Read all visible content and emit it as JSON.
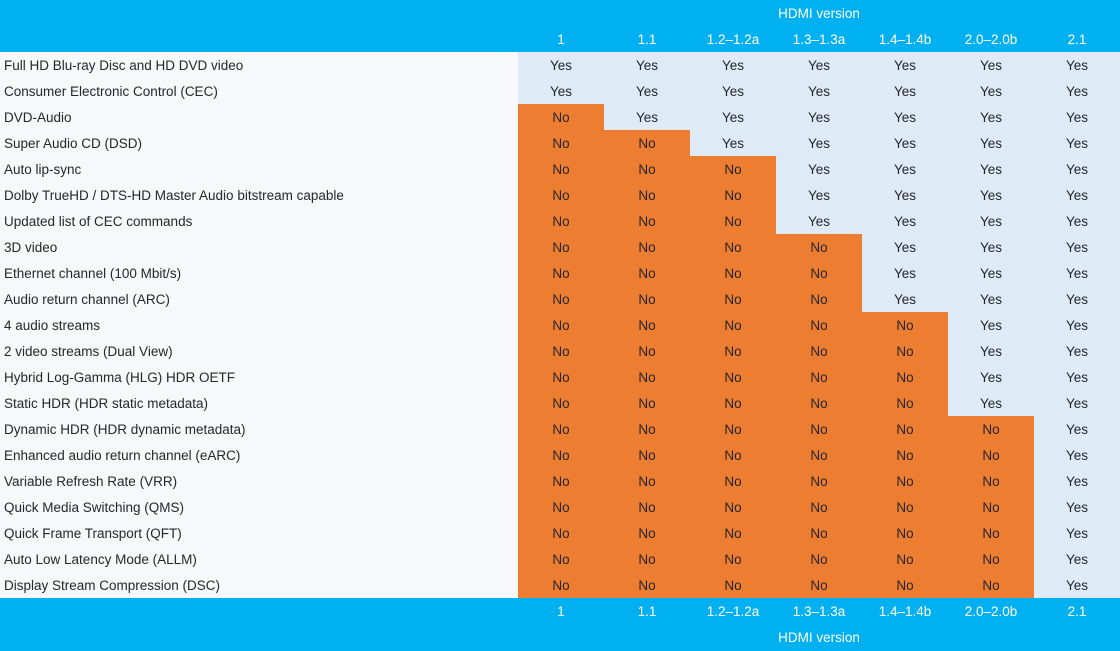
{
  "colors": {
    "header_bg": "#00B0F0",
    "header_text": "#FFFFFF",
    "yes_bg": "#DEEBF7",
    "no_bg": "#ED7D31",
    "row_label_bg": "#F7F8FA",
    "text": "#26262B"
  },
  "chart_data": {
    "type": "table",
    "title": "HDMI version",
    "columns": [
      "1",
      "1.1",
      "1.2–1.2a",
      "1.3–1.3a",
      "1.4–1.4b",
      "2.0–2.0b",
      "2.1"
    ],
    "layout": {
      "header_repeated_in_footer": true,
      "yes_color_hex": "#DEEBF7",
      "no_color_hex": "#ED7D31"
    },
    "rows": [
      {
        "feature": "Full HD Blu-ray Disc and HD DVD video",
        "values": [
          "Yes",
          "Yes",
          "Yes",
          "Yes",
          "Yes",
          "Yes",
          "Yes"
        ]
      },
      {
        "feature": "Consumer Electronic Control (CEC)",
        "values": [
          "Yes",
          "Yes",
          "Yes",
          "Yes",
          "Yes",
          "Yes",
          "Yes"
        ]
      },
      {
        "feature": "DVD-Audio",
        "values": [
          "No",
          "Yes",
          "Yes",
          "Yes",
          "Yes",
          "Yes",
          "Yes"
        ]
      },
      {
        "feature": "Super Audio CD (DSD)",
        "values": [
          "No",
          "No",
          "Yes",
          "Yes",
          "Yes",
          "Yes",
          "Yes"
        ]
      },
      {
        "feature": "Auto lip-sync",
        "values": [
          "No",
          "No",
          "No",
          "Yes",
          "Yes",
          "Yes",
          "Yes"
        ]
      },
      {
        "feature": "Dolby TrueHD / DTS-HD Master Audio bitstream capable",
        "values": [
          "No",
          "No",
          "No",
          "Yes",
          "Yes",
          "Yes",
          "Yes"
        ]
      },
      {
        "feature": "Updated list of CEC commands",
        "values": [
          "No",
          "No",
          "No",
          "Yes",
          "Yes",
          "Yes",
          "Yes"
        ]
      },
      {
        "feature": "3D video",
        "values": [
          "No",
          "No",
          "No",
          "No",
          "Yes",
          "Yes",
          "Yes"
        ]
      },
      {
        "feature": "Ethernet channel (100 Mbit/s)",
        "values": [
          "No",
          "No",
          "No",
          "No",
          "Yes",
          "Yes",
          "Yes"
        ]
      },
      {
        "feature": "Audio return channel (ARC)",
        "values": [
          "No",
          "No",
          "No",
          "No",
          "Yes",
          "Yes",
          "Yes"
        ]
      },
      {
        "feature": "4 audio streams",
        "values": [
          "No",
          "No",
          "No",
          "No",
          "No",
          "Yes",
          "Yes"
        ]
      },
      {
        "feature": "2 video streams (Dual View)",
        "values": [
          "No",
          "No",
          "No",
          "No",
          "No",
          "Yes",
          "Yes"
        ]
      },
      {
        "feature": "Hybrid Log-Gamma (HLG) HDR OETF",
        "values": [
          "No",
          "No",
          "No",
          "No",
          "No",
          "Yes",
          "Yes"
        ]
      },
      {
        "feature": "Static HDR (HDR static metadata)",
        "values": [
          "No",
          "No",
          "No",
          "No",
          "No",
          "Yes",
          "Yes"
        ]
      },
      {
        "feature": "Dynamic HDR (HDR dynamic metadata)",
        "values": [
          "No",
          "No",
          "No",
          "No",
          "No",
          "No",
          "Yes"
        ]
      },
      {
        "feature": "Enhanced audio return channel (eARC)",
        "values": [
          "No",
          "No",
          "No",
          "No",
          "No",
          "No",
          "Yes"
        ]
      },
      {
        "feature": "Variable Refresh Rate (VRR)",
        "values": [
          "No",
          "No",
          "No",
          "No",
          "No",
          "No",
          "Yes"
        ]
      },
      {
        "feature": "Quick Media Switching (QMS)",
        "values": [
          "No",
          "No",
          "No",
          "No",
          "No",
          "No",
          "Yes"
        ]
      },
      {
        "feature": "Quick Frame Transport (QFT)",
        "values": [
          "No",
          "No",
          "No",
          "No",
          "No",
          "No",
          "Yes"
        ]
      },
      {
        "feature": "Auto Low Latency Mode (ALLM)",
        "values": [
          "No",
          "No",
          "No",
          "No",
          "No",
          "No",
          "Yes"
        ]
      },
      {
        "feature": "Display Stream Compression (DSC)",
        "values": [
          "No",
          "No",
          "No",
          "No",
          "No",
          "No",
          "Yes"
        ]
      }
    ]
  }
}
